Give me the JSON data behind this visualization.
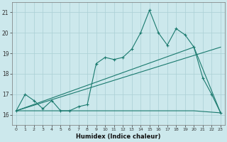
{
  "xlabel": "Humidex (Indice chaleur)",
  "bg_color": "#cce8ec",
  "line_color": "#1a7a6e",
  "grid_color": "#aacfd4",
  "xlim": [
    -0.5,
    23.5
  ],
  "ylim": [
    15.5,
    21.5
  ],
  "yticks": [
    16,
    17,
    18,
    19,
    20,
    21
  ],
  "xticks": [
    0,
    1,
    2,
    3,
    4,
    5,
    6,
    7,
    8,
    9,
    10,
    11,
    12,
    13,
    14,
    15,
    16,
    17,
    18,
    19,
    20,
    21,
    22,
    23
  ],
  "main_x": [
    0,
    1,
    2,
    3,
    4,
    5,
    6,
    7,
    8,
    9,
    10,
    11,
    12,
    13,
    14,
    15,
    16,
    17,
    18,
    19,
    20,
    21,
    22,
    23
  ],
  "main_y": [
    16.2,
    17.0,
    16.7,
    16.3,
    16.7,
    16.2,
    16.2,
    16.4,
    16.5,
    18.5,
    18.8,
    18.7,
    18.8,
    19.2,
    20.0,
    21.1,
    20.0,
    19.4,
    20.2,
    19.9,
    19.3,
    17.8,
    17.0,
    16.1
  ],
  "line1_x": [
    0,
    23
  ],
  "line1_y": [
    16.2,
    19.3
  ],
  "line2_x": [
    0,
    20,
    23
  ],
  "line2_y": [
    16.2,
    19.3,
    16.1
  ],
  "line3_x": [
    0,
    9,
    20,
    23
  ],
  "line3_y": [
    16.2,
    16.2,
    16.2,
    16.1
  ]
}
